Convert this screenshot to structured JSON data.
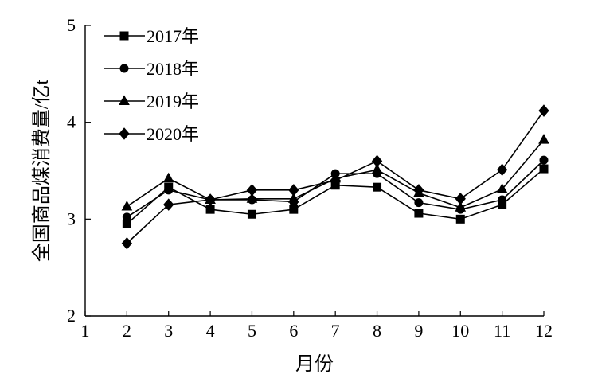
{
  "chart_data": {
    "type": "line",
    "xlabel": "月份",
    "ylabel": "全国商品煤消费量/亿t",
    "xlim": [
      1,
      12
    ],
    "ylim": [
      2,
      5
    ],
    "x_ticks": [
      "1",
      "2",
      "3",
      "4",
      "5",
      "6",
      "7",
      "8",
      "9",
      "10",
      "11",
      "12"
    ],
    "y_ticks": [
      "2",
      "3",
      "4",
      "5"
    ],
    "grid": false,
    "legend_position": "top-left",
    "x": [
      2,
      3,
      4,
      5,
      6,
      7,
      8,
      9,
      10,
      11,
      12
    ],
    "series": [
      {
        "name": "2017年",
        "marker": "square",
        "values": [
          2.95,
          3.33,
          3.1,
          3.05,
          3.1,
          3.35,
          3.33,
          3.06,
          3.0,
          3.15,
          3.52
        ]
      },
      {
        "name": "2018年",
        "marker": "circle",
        "values": [
          3.02,
          3.3,
          3.2,
          3.2,
          3.18,
          3.47,
          3.47,
          3.17,
          3.1,
          3.2,
          3.61
        ]
      },
      {
        "name": "2019年",
        "marker": "triangle",
        "values": [
          3.13,
          3.42,
          3.2,
          3.21,
          3.21,
          3.42,
          3.51,
          3.27,
          3.12,
          3.31,
          3.82
        ]
      },
      {
        "name": "2020年",
        "marker": "diamond",
        "values": [
          2.75,
          3.15,
          3.2,
          3.3,
          3.3,
          3.4,
          3.6,
          3.3,
          3.21,
          3.51,
          4.12
        ]
      }
    ]
  }
}
